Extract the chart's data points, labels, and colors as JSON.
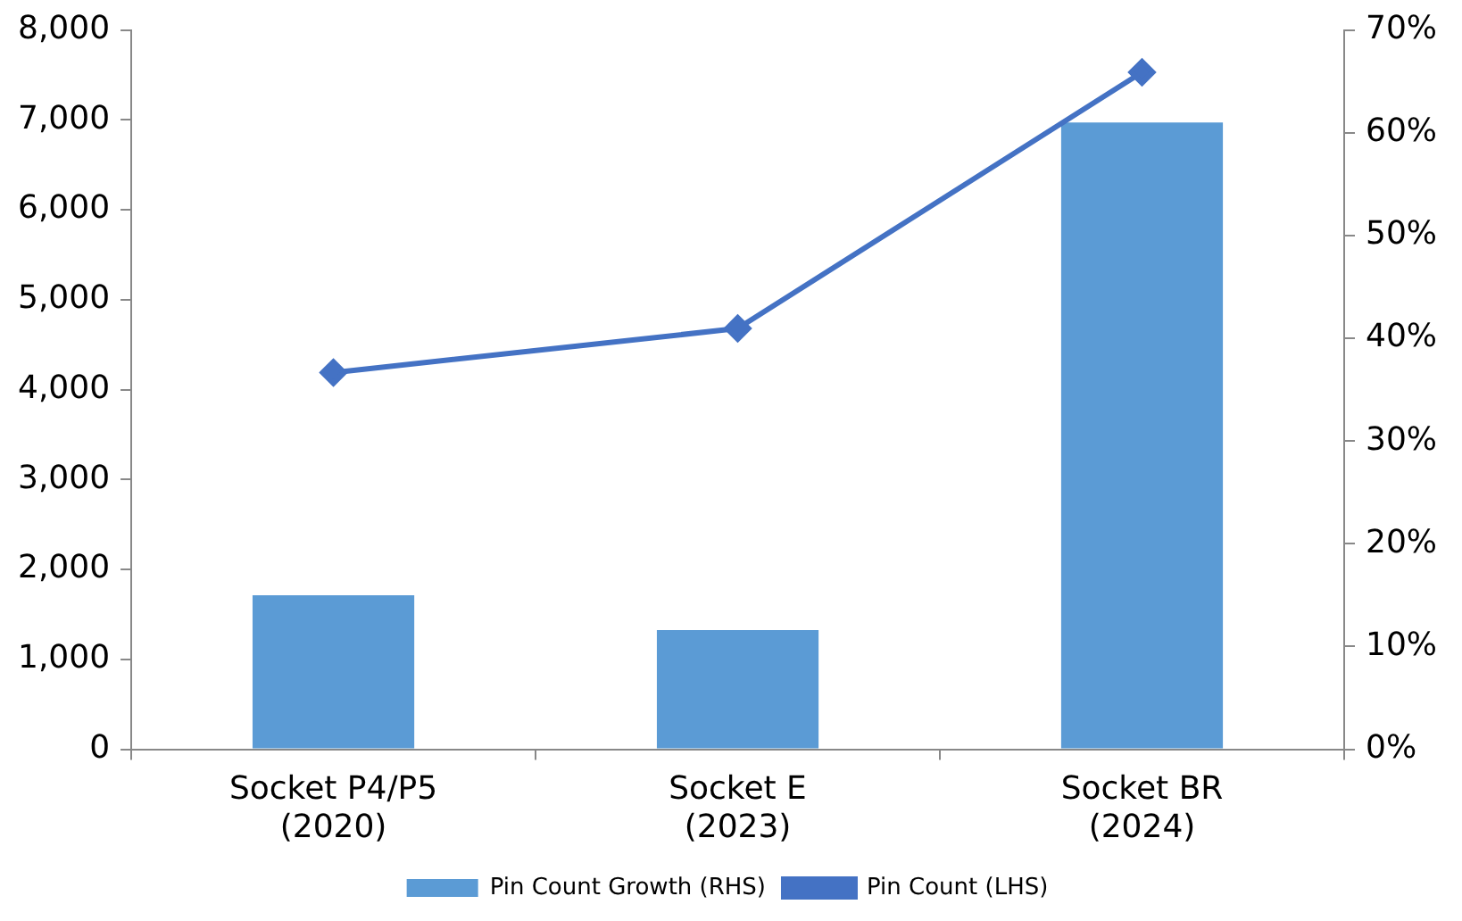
{
  "chart_data": {
    "type": "bar",
    "categories": [
      "Socket P4/P5\n(2020)",
      "Socket E\n(2023)",
      "Socket BR\n(2024)"
    ],
    "series": [
      {
        "name": "Pin Count Growth (RHS)",
        "axis": "y2",
        "color": "#5b9bd5",
        "values": [
          15,
          11.6,
          61
        ]
      },
      {
        "name": "Pin Count (LHS)",
        "type": "line",
        "axis": "y",
        "color": "#4472c4",
        "values": [
          4190,
          4680,
          7530
        ]
      }
    ],
    "ylim": [
      0,
      8000
    ],
    "yticks": [
      {
        "value": 0,
        "label": "0"
      },
      {
        "value": 1000,
        "label": "1,000"
      },
      {
        "value": 2000,
        "label": "2,000"
      },
      {
        "value": 3000,
        "label": "3,000"
      },
      {
        "value": 4000,
        "label": "4,000"
      },
      {
        "value": 5000,
        "label": "5,000"
      },
      {
        "value": 6000,
        "label": "6,000"
      },
      {
        "value": 7000,
        "label": "7,000"
      },
      {
        "value": 8000,
        "label": "8,000"
      }
    ],
    "y2lim": [
      0,
      70
    ],
    "y2ticks": [
      {
        "value": 0,
        "label": "0%"
      },
      {
        "value": 10,
        "label": "10%"
      },
      {
        "value": 20,
        "label": "20%"
      },
      {
        "value": 30,
        "label": "30%"
      },
      {
        "value": 40,
        "label": "40%"
      },
      {
        "value": 50,
        "label": "50%"
      },
      {
        "value": 60,
        "label": "60%"
      },
      {
        "value": 70,
        "label": "70%"
      }
    ],
    "grid": false,
    "legend": "bottom",
    "marker": "diamond"
  }
}
